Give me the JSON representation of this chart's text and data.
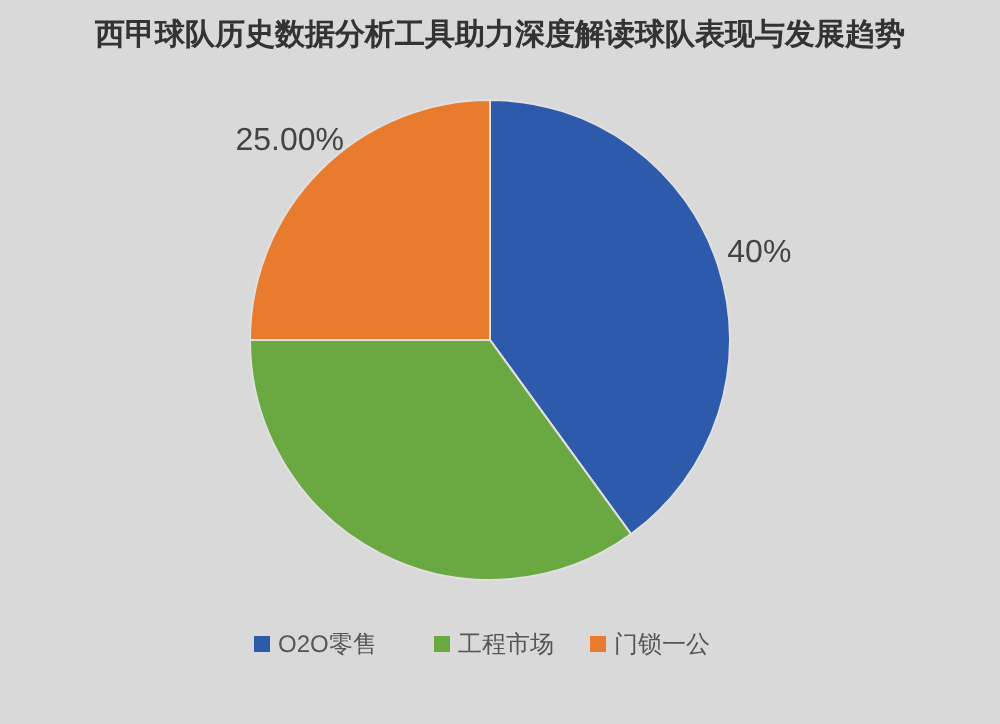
{
  "chart_data": {
    "type": "pie",
    "title": "西甲球队历史数据分析工具助力深度解读球队表现与发展趋势",
    "categories": [
      "O2O零售",
      "工程市场",
      "门锁一公"
    ],
    "values": [
      40,
      35,
      25
    ],
    "colors": [
      "#2e5aac",
      "#6aa842",
      "#e87b2e"
    ],
    "value_labels": [
      "40%",
      null,
      "25.00%"
    ],
    "legend": "bottom"
  }
}
